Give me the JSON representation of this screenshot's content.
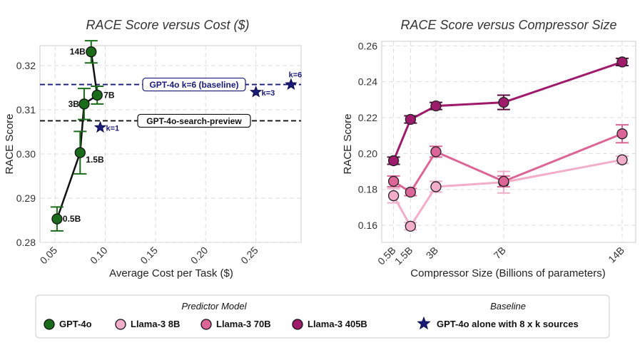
{
  "chart_data": [
    {
      "type": "line",
      "title": "RACE Score versus Cost ($)",
      "xlabel": "Average Cost per Task ($)",
      "ylabel": "RACE Score",
      "xlim": [
        0.035,
        0.295
      ],
      "ylim": [
        0.28,
        0.3245
      ],
      "xticks": [
        0.05,
        0.1,
        0.15,
        0.2,
        0.25
      ],
      "xtick_labels": [
        "0.05",
        "0.10",
        "0.15",
        "0.20",
        "0.25"
      ],
      "yticks": [
        0.28,
        0.29,
        0.3,
        0.31,
        0.32
      ],
      "ytick_labels": [
        "0.28",
        "0.29",
        "0.30",
        "0.31",
        "0.32"
      ],
      "series": [
        {
          "name": "GPT-4o",
          "color": "#1a6b1a",
          "points": [
            {
              "x": 0.052,
              "y": 0.2853,
              "err": 0.0027,
              "label": "0.5B"
            },
            {
              "x": 0.075,
              "y": 0.3003,
              "err": 0.0048,
              "label": "1.5B"
            },
            {
              "x": 0.079,
              "y": 0.3113,
              "err": 0.0035,
              "label": "3B"
            },
            {
              "x": 0.092,
              "y": 0.3133,
              "err": 0.002,
              "label": "7B"
            },
            {
              "x": 0.086,
              "y": 0.3231,
              "err": 0.0025,
              "label": "14B"
            }
          ]
        }
      ],
      "baselines": [
        {
          "name": "GPT-4o k=6 (baseline)",
          "y": 0.3157,
          "color": "#1a1a7a"
        },
        {
          "name": "GPT-4o-search-preview",
          "y": 0.3075,
          "color": "#111111"
        }
      ],
      "stars": [
        {
          "label": "k=1",
          "x": 0.095,
          "y": 0.306
        },
        {
          "label": "k=3",
          "x": 0.25,
          "y": 0.314
        },
        {
          "label": "k=6",
          "x": 0.285,
          "y": 0.3157
        }
      ]
    },
    {
      "type": "line",
      "title": "RACE Score versus Compressor Size",
      "xlabel": "Compressor Size (Billions of parameters)",
      "ylabel": "RACE Score",
      "xlim": [
        -0.2,
        14.8
      ],
      "ylim": [
        0.1505,
        0.2625
      ],
      "xticks": [
        0.5,
        1.5,
        3,
        7,
        14
      ],
      "xtick_labels": [
        "0.5B",
        "1.5B",
        "3B",
        "7B",
        "14B"
      ],
      "yticks": [
        0.16,
        0.18,
        0.2,
        0.22,
        0.24,
        0.26
      ],
      "ytick_labels": [
        "0.16",
        "0.18",
        "0.20",
        "0.22",
        "0.24",
        "0.26"
      ],
      "x": [
        0.5,
        1.5,
        3,
        7,
        14
      ],
      "series": [
        {
          "name": "Llama-3 8B",
          "color": "#f2adc7",
          "values": [
            0.1765,
            0.1595,
            0.1815,
            0.184,
            0.1965
          ],
          "err": [
            0.004,
            0.002,
            0.003,
            0.006,
            0.002
          ]
        },
        {
          "name": "Llama-3 70B",
          "color": "#dc6597",
          "values": [
            0.1845,
            0.1785,
            0.201,
            0.1845,
            0.211
          ],
          "err": [
            0.003,
            0.002,
            0.003,
            0.003,
            0.005
          ]
        },
        {
          "name": "Llama-3 405B",
          "color": "#9e1a6b",
          "values": [
            0.196,
            0.219,
            0.2265,
            0.2285,
            0.251
          ],
          "err": [
            0.002,
            0.002,
            0.002,
            0.004,
            0.002
          ]
        }
      ]
    }
  ],
  "legend": {
    "predictor_title": "Predictor Model",
    "baseline_title": "Baseline",
    "items": [
      {
        "label": "GPT-4o",
        "color": "#1a6b1a"
      },
      {
        "label": "Llama-3 8B",
        "color": "#f2adc7"
      },
      {
        "label": "Llama-3 70B",
        "color": "#dc6597"
      },
      {
        "label": "Llama-3 405B",
        "color": "#9e1a6b"
      }
    ],
    "baseline_label": "GPT-4o alone with 8 x k sources",
    "baseline_color": "#1a1a7a"
  }
}
